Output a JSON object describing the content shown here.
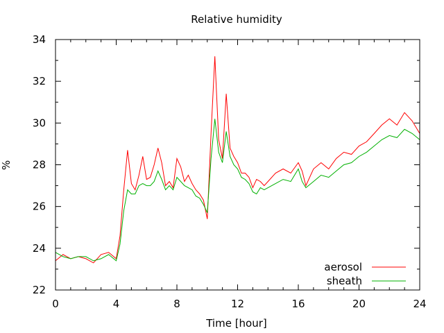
{
  "chart_data": {
    "type": "line",
    "title": "Relative humidity",
    "xlabel": "Time [hour]",
    "ylabel": "%",
    "xlim": [
      0,
      24
    ],
    "ylim": [
      22,
      34
    ],
    "x_ticks": [
      0,
      4,
      8,
      12,
      16,
      20,
      24
    ],
    "y_ticks": [
      22,
      24,
      26,
      28,
      30,
      32,
      34
    ],
    "grid": false,
    "legend_position": "bottom-right",
    "x": [
      0,
      0.5,
      1,
      1.5,
      2,
      2.5,
      3,
      3.5,
      4,
      4.25,
      4.5,
      4.75,
      5,
      5.25,
      5.5,
      5.75,
      6,
      6.25,
      6.5,
      6.75,
      7,
      7.25,
      7.5,
      7.75,
      8,
      8.25,
      8.5,
      8.75,
      9,
      9.25,
      9.5,
      9.75,
      10,
      10.25,
      10.5,
      10.75,
      11,
      11.25,
      11.5,
      11.75,
      12,
      12.25,
      12.5,
      12.75,
      13,
      13.25,
      13.5,
      13.75,
      14,
      14.5,
      15,
      15.5,
      16,
      16.25,
      16.5,
      17,
      17.5,
      18,
      18.5,
      19,
      19.5,
      20,
      20.5,
      21,
      21.5,
      22,
      22.5,
      23,
      23.5,
      24
    ],
    "series": [
      {
        "name": "aerosol",
        "color": "#ff0000",
        "values": [
          23.4,
          23.7,
          23.5,
          23.6,
          23.5,
          23.3,
          23.7,
          23.8,
          23.5,
          24.6,
          26.8,
          28.7,
          27.1,
          26.8,
          27.5,
          28.4,
          27.3,
          27.4,
          28.0,
          28.8,
          28.1,
          27.0,
          27.2,
          26.9,
          28.3,
          27.9,
          27.2,
          27.5,
          27.1,
          26.8,
          26.6,
          26.3,
          25.4,
          29.5,
          33.2,
          29.2,
          28.3,
          31.4,
          28.8,
          28.4,
          28.1,
          27.6,
          27.6,
          27.4,
          26.9,
          27.3,
          27.2,
          27.0,
          27.2,
          27.6,
          27.8,
          27.6,
          28.1,
          27.7,
          27.0,
          27.8,
          28.1,
          27.8,
          28.3,
          28.6,
          28.5,
          28.9,
          29.1,
          29.5,
          29.9,
          30.2,
          29.9,
          30.5,
          30.1,
          29.5
        ]
      },
      {
        "name": "sheath",
        "color": "#00b000",
        "values": [
          23.8,
          23.6,
          23.5,
          23.6,
          23.6,
          23.4,
          23.5,
          23.7,
          23.4,
          24.2,
          25.8,
          26.8,
          26.6,
          26.6,
          27.0,
          27.1,
          27.0,
          27.0,
          27.2,
          27.7,
          27.3,
          26.8,
          27.0,
          26.8,
          27.4,
          27.2,
          27.0,
          26.9,
          26.8,
          26.5,
          26.4,
          26.1,
          25.7,
          28.3,
          30.2,
          28.6,
          28.1,
          29.6,
          28.4,
          28.0,
          27.8,
          27.4,
          27.3,
          27.1,
          26.7,
          26.6,
          26.9,
          26.8,
          26.9,
          27.1,
          27.3,
          27.2,
          27.8,
          27.2,
          26.9,
          27.2,
          27.5,
          27.4,
          27.7,
          28.0,
          28.1,
          28.4,
          28.6,
          28.9,
          29.2,
          29.4,
          29.3,
          29.7,
          29.5,
          29.2
        ]
      }
    ]
  }
}
